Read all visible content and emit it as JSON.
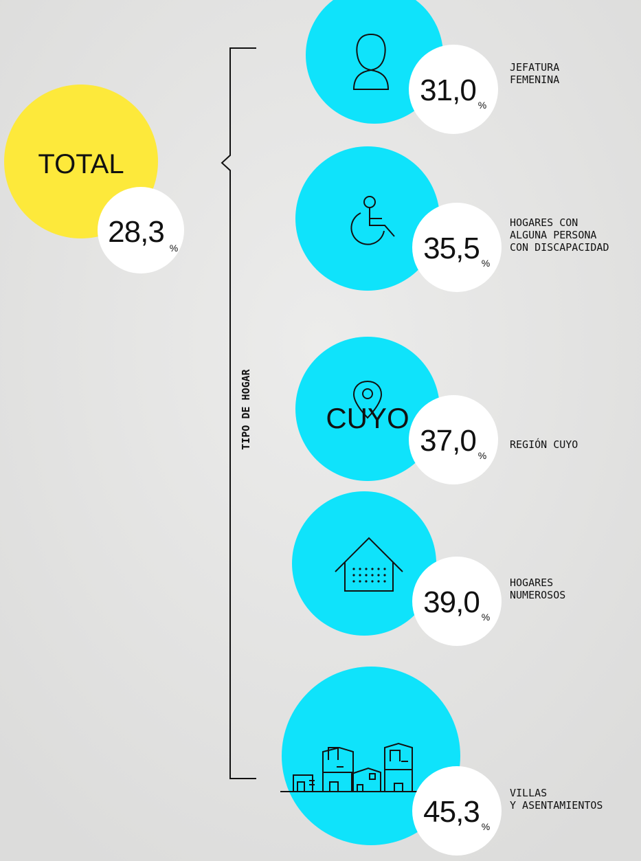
{
  "total": {
    "label": "TOTAL",
    "value": "28,3",
    "unit": "%"
  },
  "group_label": "TIPO DE HOGAR",
  "items": [
    {
      "value": "31,0",
      "unit": "%",
      "label": [
        "JEFATURA",
        "FEMENINA"
      ]
    },
    {
      "value": "35,5",
      "unit": "%",
      "label": [
        "HOGARES CON",
        "ALGUNA PERSONA",
        "CON DISCAPACIDAD"
      ]
    },
    {
      "value": "37,0",
      "unit": "%",
      "label": [
        "REGIÓN CUYO"
      ],
      "icon_text": "CUYO"
    },
    {
      "value": "39,0",
      "unit": "%",
      "label": [
        "HOGARES",
        "NUMEROSOS"
      ]
    },
    {
      "value": "45,3",
      "unit": "%",
      "label": [
        "VILLAS",
        "Y ASENTAMIENTOS"
      ]
    }
  ]
}
